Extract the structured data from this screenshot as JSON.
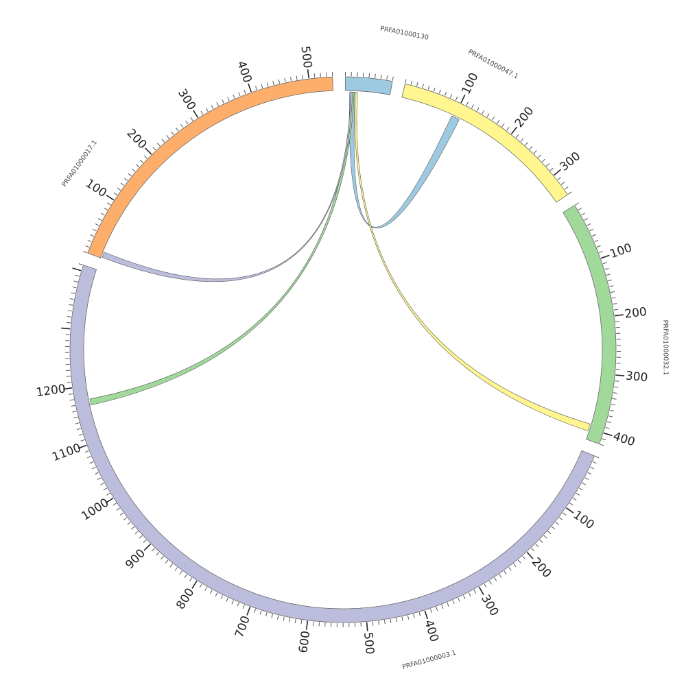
{
  "chart_data": {
    "type": "chord",
    "segments": [
      {
        "id": "PRFA01000130",
        "label": "PRFA01000130",
        "length": 80,
        "color": "#9ecae1",
        "tick_labels": []
      },
      {
        "id": "PRFA01000047.1",
        "label": "PRFA01000047.1",
        "length": 340,
        "color": "#fff68f",
        "tick_labels": [
          100,
          200,
          300
        ]
      },
      {
        "id": "PRFA01000032.1",
        "label": "PRFA01000032.1",
        "length": 420,
        "color": "#a1d99b",
        "tick_labels": [
          100,
          200,
          300,
          400
        ]
      },
      {
        "id": "PRFA01000003.1",
        "label": "PRFA01000003.1",
        "length": 1410,
        "color": "#bcbddc",
        "tick_labels": [
          100,
          200,
          300,
          400,
          500,
          600,
          700,
          800,
          900,
          1000,
          1100,
          1200
        ]
      },
      {
        "id": "PRFA01000017.1",
        "label": "PRFA01000017.1",
        "length": 540,
        "color": "#fdae6b",
        "tick_labels": [
          100,
          200,
          300,
          400,
          500
        ]
      }
    ],
    "links": [
      {
        "source": "PRFA01000130",
        "source_range": [
          8,
          18
        ],
        "target": "PRFA01000047.1",
        "target_range": [
          95,
          110
        ],
        "color": "#9ecae1"
      },
      {
        "source": "PRFA01000130",
        "source_range": [
          18,
          22
        ],
        "target": "PRFA01000032.1",
        "target_range": [
          392,
          405
        ],
        "color": "#fff68f"
      },
      {
        "source": "PRFA01000130",
        "source_range": [
          10,
          16
        ],
        "target": "PRFA01000003.1",
        "target_range": [
          1165,
          1176
        ],
        "color": "#a1d99b"
      },
      {
        "source": "PRFA01000130",
        "source_range": [
          10,
          13
        ],
        "target": "PRFA01000017.1",
        "target_range": [
          2,
          12
        ],
        "color": "#bcbddc"
      }
    ]
  }
}
